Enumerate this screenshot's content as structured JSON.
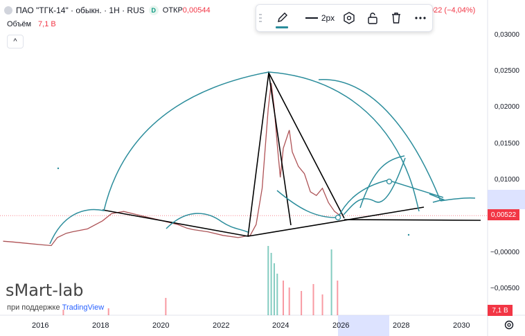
{
  "header": {
    "title": "ПАО \"ТГК-14\" · обыкн. · 1Н · RUS",
    "status_letter": "D",
    "open_label": "ОТКР",
    "open_value": "0,00544",
    "change": "022 (−4,04%)"
  },
  "volume": {
    "label": "Объём",
    "value": "7,1 B"
  },
  "toolbar": {
    "line_width_label": "2px"
  },
  "colors": {
    "drawing": "#2a8c9b",
    "candle_up": "#089981",
    "candle_down": "#f23645",
    "trend": "#000000",
    "accent": "#2962ff"
  },
  "icons": [
    "pencil-icon",
    "line-width-icon",
    "hexagon-settings-icon",
    "unlock-icon",
    "trash-icon",
    "more-icon",
    "gear-icon",
    "chevron-up-icon"
  ],
  "price_scale": [
    "0,03000",
    "0,02500",
    "0,02000",
    "0,01500",
    "0,01000",
    "0,00522",
    "−0,00000",
    "−0,00500"
  ],
  "current_price": "0,00522",
  "volume_badge": "7,1 B",
  "time_scale": [
    "2016",
    "2018",
    "2020",
    "2022",
    "2024",
    "2026",
    "2028",
    "2030"
  ],
  "branding": {
    "site": "sMart-lab",
    "powered_prefix": "при поддержке",
    "powered_brand": "TradingView"
  },
  "chart_data": {
    "type": "line",
    "x_unit": "year",
    "y_unit": "RUB",
    "price_series": [
      [
        2014.7,
        0.0017
      ],
      [
        2015.0,
        0.0016
      ],
      [
        2015.5,
        0.0014
      ],
      [
        2016.0,
        0.0012
      ],
      [
        2016.3,
        0.0011
      ],
      [
        2016.5,
        0.0022
      ],
      [
        2016.8,
        0.0028
      ],
      [
        2017.0,
        0.003
      ],
      [
        2017.5,
        0.0034
      ],
      [
        2018.0,
        0.0045
      ],
      [
        2018.3,
        0.0055
      ],
      [
        2018.7,
        0.0058
      ],
      [
        2019.0,
        0.0055
      ],
      [
        2019.5,
        0.005
      ],
      [
        2020.0,
        0.0045
      ],
      [
        2020.5,
        0.004
      ],
      [
        2020.8,
        0.0035
      ],
      [
        2021.0,
        0.0033
      ],
      [
        2021.5,
        0.003
      ],
      [
        2022.0,
        0.0025
      ],
      [
        2022.5,
        0.0022
      ],
      [
        2022.9,
        0.0025
      ],
      [
        2023.1,
        0.004
      ],
      [
        2023.3,
        0.009
      ],
      [
        2023.5,
        0.02
      ],
      [
        2023.6,
        0.0235
      ],
      [
        2023.7,
        0.02
      ],
      [
        2023.8,
        0.015
      ],
      [
        2023.9,
        0.0105
      ],
      [
        2024.0,
        0.0145
      ],
      [
        2024.2,
        0.017
      ],
      [
        2024.3,
        0.014
      ],
      [
        2024.5,
        0.012
      ],
      [
        2024.7,
        0.011
      ],
      [
        2024.9,
        0.0085
      ],
      [
        2025.1,
        0.008
      ],
      [
        2025.3,
        0.009
      ],
      [
        2025.5,
        0.007
      ],
      [
        2025.7,
        0.0058
      ],
      [
        2025.9,
        0.0052
      ]
    ],
    "volume_spikes": [
      [
        2023.5,
        1.0
      ],
      [
        2023.6,
        0.9
      ],
      [
        2023.7,
        0.75
      ],
      [
        2023.8,
        0.6
      ],
      [
        2024.0,
        0.5
      ],
      [
        2024.2,
        0.4
      ],
      [
        2024.6,
        0.35
      ],
      [
        2025.0,
        0.45
      ],
      [
        2025.3,
        0.3
      ],
      [
        2025.6,
        0.95
      ],
      [
        2025.8,
        0.5
      ],
      [
        2020.1,
        0.25
      ],
      [
        2018.2,
        0.1
      ],
      [
        2016.7,
        0.08
      ]
    ],
    "y_ticks": [
      0.03,
      0.025,
      0.02,
      0.015,
      0.01,
      0.0,
      -0.005
    ],
    "x_ticks": [
      2016,
      2018,
      2020,
      2022,
      2024,
      2026,
      2028,
      2030
    ]
  }
}
